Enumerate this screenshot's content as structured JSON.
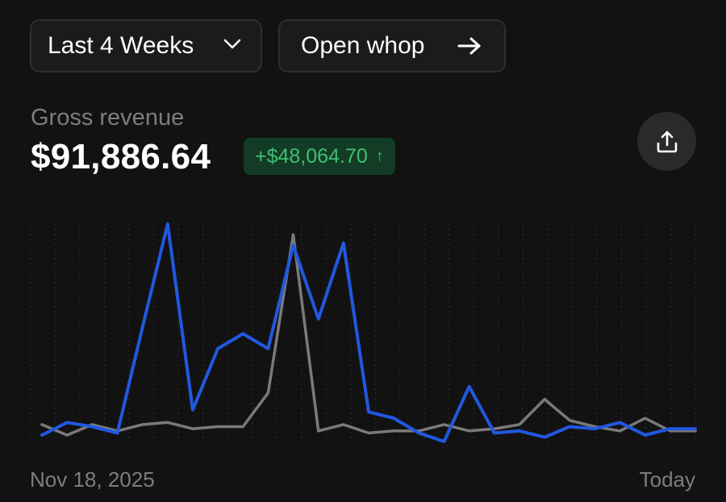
{
  "filters": {
    "range_label": "Last 4 Weeks",
    "open_label": "Open whop"
  },
  "metric": {
    "label": "Gross revenue",
    "value": "$91,886.64",
    "change": "+$48,064.70",
    "change_arrow": "↑"
  },
  "icons": {
    "range": "chevron-down-icon",
    "open": "arrow-right-icon",
    "export": "share-export-icon"
  },
  "colors": {
    "current_series": "#2158e0",
    "previous_series": "#7a7a7a",
    "positive": "#3fbf72"
  },
  "chart_data": {
    "type": "line",
    "x_start_label": "Nov 18, 2025",
    "x_end_label": "Today",
    "ylim": [
      0,
      100
    ],
    "grid": "vertical dotted",
    "series": [
      {
        "values": [
          0,
          6,
          4,
          1,
          51,
          100,
          12,
          41,
          48,
          41,
          90,
          55,
          91,
          11,
          8,
          1,
          -3,
          23,
          1,
          2,
          -1,
          4,
          3,
          6,
          0,
          3,
          3
        ]
      },
      {
        "values": [
          5,
          0,
          5,
          2,
          5,
          6,
          3,
          4,
          4,
          20,
          95,
          2,
          5,
          1,
          2,
          2,
          5,
          2,
          3,
          5,
          17,
          7,
          4,
          2,
          8,
          2,
          2
        ]
      }
    ]
  }
}
